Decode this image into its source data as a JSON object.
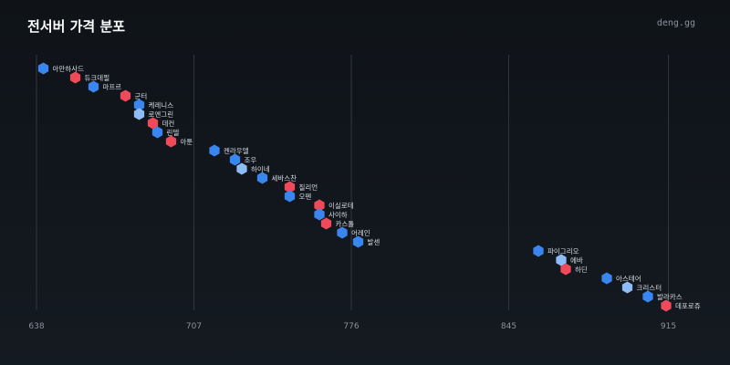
{
  "header": {
    "title": "전서버 가격 분포",
    "brand": "deng.gg"
  },
  "colors": {
    "red": "#ef4a5a",
    "blue": "#3a86f0",
    "lightblue": "#8ebdf5",
    "grid": "#2f363f",
    "tick": "#8a929c"
  },
  "chart_data": {
    "type": "scatter",
    "title": "전서버 가격 분포",
    "xlabel": "",
    "ylabel": "",
    "x_ticks": [
      638,
      707,
      776,
      845,
      915
    ],
    "xlim": [
      634,
      934
    ],
    "grid": "vertical",
    "points": [
      {
        "label": "아만하사드",
        "x": 641,
        "color": "blue"
      },
      {
        "label": "듀크데필",
        "x": 655,
        "color": "red"
      },
      {
        "label": "마프르",
        "x": 663,
        "color": "blue"
      },
      {
        "label": "군터",
        "x": 677,
        "color": "red"
      },
      {
        "label": "케레니스",
        "x": 683,
        "color": "blue"
      },
      {
        "label": "로엔그린",
        "x": 683,
        "color": "lightblue"
      },
      {
        "label": "데컨",
        "x": 689,
        "color": "red"
      },
      {
        "label": "린델",
        "x": 691,
        "color": "blue"
      },
      {
        "label": "아툰",
        "x": 697,
        "color": "red"
      },
      {
        "label": "켄라우델",
        "x": 716,
        "color": "blue"
      },
      {
        "label": "조우",
        "x": 725,
        "color": "blue"
      },
      {
        "label": "하이네",
        "x": 728,
        "color": "lightblue"
      },
      {
        "label": "세바스찬",
        "x": 737,
        "color": "blue"
      },
      {
        "label": "질리언",
        "x": 749,
        "color": "red"
      },
      {
        "label": "오펜",
        "x": 749,
        "color": "blue"
      },
      {
        "label": "이실로테",
        "x": 762,
        "color": "red"
      },
      {
        "label": "사이하",
        "x": 762,
        "color": "blue"
      },
      {
        "label": "카스톨",
        "x": 765,
        "color": "red"
      },
      {
        "label": "어레인",
        "x": 772,
        "color": "blue"
      },
      {
        "label": "발센",
        "x": 779,
        "color": "blue"
      },
      {
        "label": "파이그리오",
        "x": 858,
        "color": "blue"
      },
      {
        "label": "에바",
        "x": 868,
        "color": "lightblue"
      },
      {
        "label": "하딘",
        "x": 870,
        "color": "red"
      },
      {
        "label": "아스테어",
        "x": 888,
        "color": "blue"
      },
      {
        "label": "크리스터",
        "x": 897,
        "color": "lightblue"
      },
      {
        "label": "발라카스",
        "x": 906,
        "color": "blue"
      },
      {
        "label": "데포로쥬",
        "x": 914,
        "color": "red"
      }
    ]
  }
}
